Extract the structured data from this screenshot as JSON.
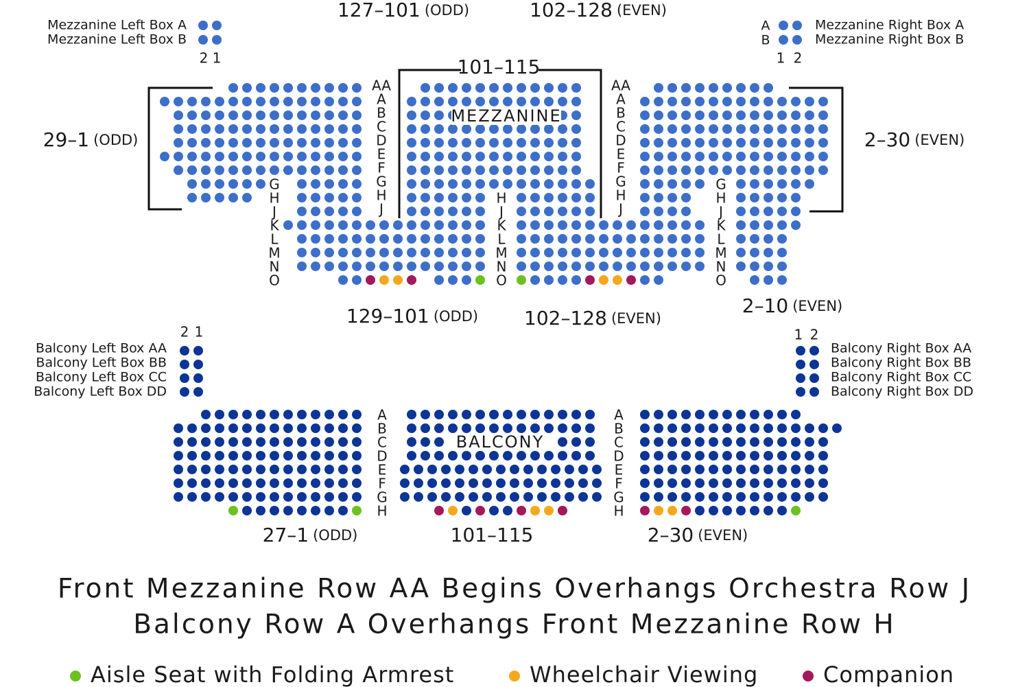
{
  "mezzanine": {
    "top_left_range": {
      "number": "127–101",
      "parity": "(ODD)"
    },
    "top_right_range": {
      "number": "102–128",
      "parity": "(EVEN)"
    },
    "left_boxes": {
      "rows": [
        "Mezzanine Left Box A",
        "Mezzanine Left Box B"
      ],
      "seat_numbers": [
        "2",
        "1"
      ]
    },
    "right_boxes": {
      "rows": [
        "Mezzanine Right Box A",
        "Mezzanine Right Box B"
      ],
      "row_letters": [
        "A",
        "B"
      ],
      "seat_numbers": [
        "1",
        "2"
      ]
    },
    "center_range": "101–115",
    "section": "MEZZANINE",
    "left_range": {
      "number": "29–1",
      "parity": "(ODD)"
    },
    "right_range": {
      "number": "2–30",
      "parity": "(EVEN)"
    },
    "row_labels": {
      "left_aisle": [
        "AA",
        "A",
        "B",
        "C",
        "D",
        "E",
        "F",
        "G",
        "H",
        "J"
      ],
      "right_aisle": [
        "AA",
        "A",
        "B",
        "C",
        "D",
        "E",
        "F",
        "G",
        "H",
        "J"
      ],
      "left_lower": [
        "G",
        "H",
        "J",
        "K",
        "L",
        "M",
        "N",
        "O"
      ],
      "center_lower": [
        "H",
        "J",
        "K",
        "L",
        "M",
        "N",
        "O"
      ],
      "right_lower": [
        "G",
        "H",
        "J",
        "K",
        "L",
        "M",
        "N",
        "O"
      ]
    },
    "bottom_left_range": {
      "number": "129–101",
      "parity": "(ODD)"
    },
    "bottom_right_range": {
      "number": "102–128",
      "parity": "(EVEN)"
    },
    "bottom_far_right_range": {
      "number": "2–10",
      "parity": "(EVEN)"
    }
  },
  "balcony": {
    "left_boxes": {
      "rows": [
        "Balcony Left Box AA",
        "Balcony Left Box BB",
        "Balcony Left Box CC",
        "Balcony Left Box DD"
      ],
      "seat_numbers": [
        "2",
        "1"
      ]
    },
    "right_boxes": {
      "rows": [
        "Balcony Right Box AA",
        "Balcony Right Box BB",
        "Balcony Right Box CC",
        "Balcony Right Box DD"
      ],
      "seat_numbers": [
        "1",
        "2"
      ]
    },
    "section": "BALCONY",
    "row_labels": {
      "left_aisle": [
        "A",
        "B",
        "C",
        "D",
        "E",
        "F",
        "G",
        "H"
      ],
      "right_aisle": [
        "A",
        "B",
        "C",
        "D",
        "E",
        "F",
        "G",
        "H"
      ]
    },
    "left_range": {
      "number": "27–1",
      "parity": "(ODD)"
    },
    "center_range": "101–115",
    "right_range": {
      "number": "2–30",
      "parity": "(EVEN)"
    }
  },
  "notes": [
    "Front Mezzanine Row AA Begins Overhangs Orchestra Row J",
    "Balcony Row A Overhangs Front Mezzanine Row H"
  ],
  "legend": [
    {
      "label": "Aisle Seat with Folding Armrest"
    },
    {
      "label": "Wheelchair Viewing"
    },
    {
      "label": "Companion"
    }
  ]
}
